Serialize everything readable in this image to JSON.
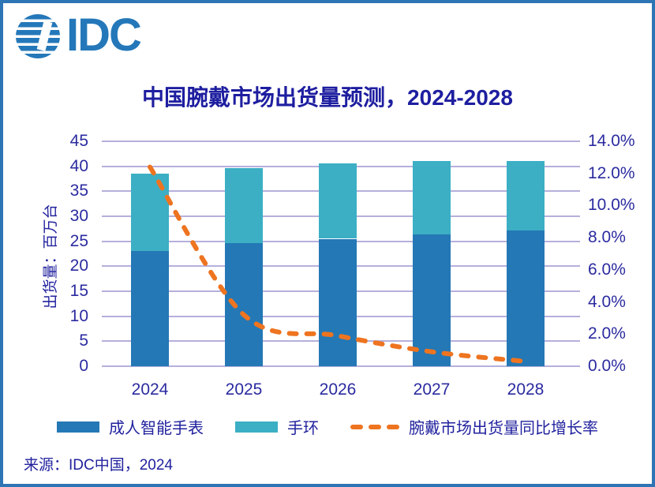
{
  "frame": {
    "border_color": "#2E75B6",
    "background": "#FFFFFF"
  },
  "logo": {
    "text": "IDC",
    "color": "#2478B9"
  },
  "title": {
    "text": "中国腕戴市场出货量预测，2024-2028",
    "color": "#1E1EA0"
  },
  "source": {
    "text": "来源：IDC中国，2024"
  },
  "chart_data": {
    "type": "bar",
    "subtype": "stacked-bars-with-line",
    "title": "中国腕戴市场出货量预测，2024-2028",
    "categories": [
      "2024",
      "2025",
      "2026",
      "2027",
      "2028"
    ],
    "series": [
      {
        "name": "成人智能手表",
        "type": "bar",
        "stack": true,
        "color": "#2478B5",
        "values": [
          23.0,
          24.7,
          25.5,
          26.4,
          27.1
        ]
      },
      {
        "name": "手环",
        "type": "bar",
        "stack": true,
        "color": "#3CAFC4",
        "values": [
          15.6,
          15.0,
          15.1,
          14.6,
          14.0
        ]
      },
      {
        "name": "腕戴市场出货量同比增长率",
        "type": "line",
        "style": "dashed",
        "axis": "right",
        "color": "#EE7420",
        "unit": "%",
        "values": [
          12.4,
          3.2,
          1.9,
          0.9,
          0.3
        ]
      }
    ],
    "stack_totals": [
      38.6,
      39.7,
      40.6,
      41.0,
      41.1
    ],
    "xlabel": "",
    "ylabel": "出货量：百万台",
    "left_axis": {
      "min": 0,
      "max": 45,
      "step": 5,
      "tick_labels": [
        "0",
        "5",
        "10",
        "15",
        "20",
        "25",
        "30",
        "35",
        "40",
        "45"
      ]
    },
    "right_axis": {
      "min": 0,
      "max": 14,
      "step": 2,
      "tick_labels": [
        "0.0%",
        "2.0%",
        "4.0%",
        "6.0%",
        "8.0%",
        "10.0%",
        "12.0%",
        "14.0%"
      ]
    },
    "grid": true,
    "gridline_color": "#B5B0DC",
    "tick_color": "#2B2BA0",
    "legend_position": "bottom"
  }
}
